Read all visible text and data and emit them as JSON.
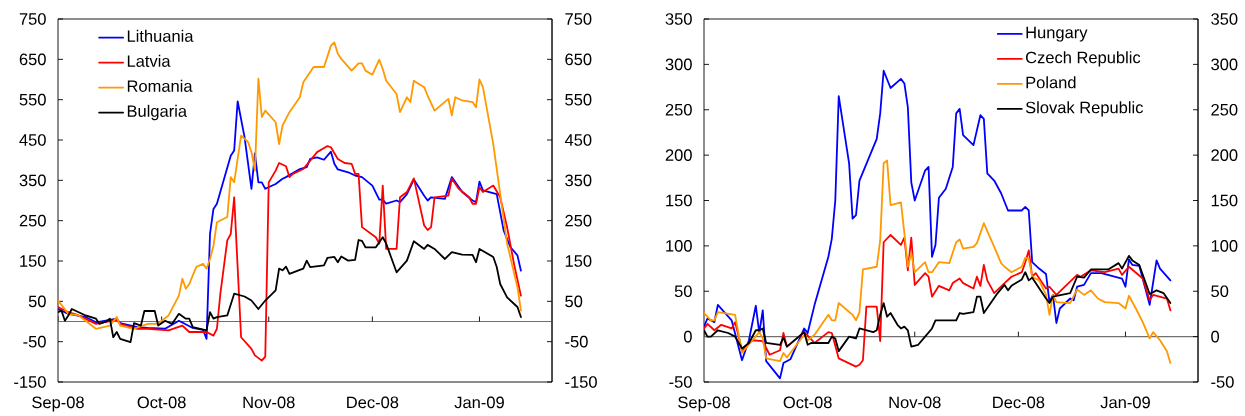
{
  "chart_data": [
    {
      "type": "line",
      "xlim": [
        "2008-09-01",
        "2009-01-22"
      ],
      "xticks": [
        {
          "value": "2008-09-01",
          "label": "Sep-08"
        },
        {
          "value": "2008-10-01",
          "label": "Oct-08"
        },
        {
          "value": "2008-11-01",
          "label": "Nov-08"
        },
        {
          "value": "2008-12-01",
          "label": "Dec-08"
        },
        {
          "value": "2009-01-01",
          "label": "Jan-09"
        }
      ],
      "ylim": [
        -150,
        750
      ],
      "yticks": [
        -150,
        -50,
        50,
        150,
        250,
        350,
        450,
        550,
        650,
        750
      ],
      "y2lim": [
        -150,
        750
      ],
      "y2ticks": [
        -150,
        -50,
        50,
        150,
        250,
        350,
        450,
        550,
        650,
        750
      ],
      "legend": "top left",
      "ref_lines": [
        {
          "axis": "y",
          "value": 0,
          "color": "#707070"
        }
      ],
      "series": [
        {
          "name": "Lithuania",
          "color": "#0000ff",
          "x": [
            "2008-09-01",
            "2008-09-04",
            "2008-09-09",
            "2008-09-12",
            "2008-09-18",
            "2008-09-19",
            "2008-09-24",
            "2008-09-27",
            "2008-10-02",
            "2008-10-06",
            "2008-10-10",
            "2008-10-13",
            "2008-10-14",
            "2008-10-15",
            "2008-10-16",
            "2008-10-17",
            "2008-10-21",
            "2008-10-22",
            "2008-10-23",
            "2008-10-25",
            "2008-10-27",
            "2008-10-28",
            "2008-10-29",
            "2008-10-30",
            "2008-10-31",
            "2008-11-03",
            "2008-11-05",
            "2008-11-06",
            "2008-11-10",
            "2008-11-12",
            "2008-11-13",
            "2008-11-15",
            "2008-11-17",
            "2008-11-19",
            "2008-11-20",
            "2008-11-21",
            "2008-11-24",
            "2008-11-26",
            "2008-11-28",
            "2008-12-01",
            "2008-12-03",
            "2008-12-04",
            "2008-12-05",
            "2008-12-08",
            "2008-12-09",
            "2008-12-11",
            "2008-12-13",
            "2008-12-16",
            "2008-12-17",
            "2008-12-18",
            "2008-12-22",
            "2008-12-24",
            "2008-12-27",
            "2008-12-30",
            "2008-12-31",
            "2009-01-01",
            "2009-01-02",
            "2009-01-06",
            "2009-01-08",
            "2009-01-10",
            "2009-01-12",
            "2009-01-13"
          ],
          "values": [
            31,
            19,
            11,
            -2,
            7,
            -4,
            -14,
            -16,
            -18,
            2,
            -16,
            -21,
            -43,
            217,
            279,
            292,
            411,
            424,
            546,
            457,
            329,
            417,
            345,
            345,
            329,
            341,
            354,
            358,
            378,
            383,
            403,
            407,
            401,
            421,
            391,
            377,
            370,
            362,
            358,
            337,
            302,
            302,
            292,
            300,
            296,
            316,
            352,
            312,
            300,
            308,
            304,
            358,
            321,
            300,
            296,
            347,
            325,
            316,
            226,
            184,
            164,
            126
          ]
        },
        {
          "name": "Latvia",
          "color": "#ff0000",
          "x": [
            "2008-09-01",
            "2008-09-04",
            "2008-09-07",
            "2008-09-12",
            "2008-09-18",
            "2008-09-19",
            "2008-09-24",
            "2008-09-27",
            "2008-10-03",
            "2008-10-07",
            "2008-10-09",
            "2008-10-14",
            "2008-10-16",
            "2008-10-17",
            "2008-10-18",
            "2008-10-20",
            "2008-10-21",
            "2008-10-22",
            "2008-10-24",
            "2008-10-27",
            "2008-10-28",
            "2008-10-30",
            "2008-10-31",
            "2008-11-01",
            "2008-11-03",
            "2008-11-04",
            "2008-11-06",
            "2008-11-07",
            "2008-11-08",
            "2008-11-11",
            "2008-11-13",
            "2008-11-15",
            "2008-11-18",
            "2008-11-19",
            "2008-11-21",
            "2008-11-23",
            "2008-11-25",
            "2008-11-26",
            "2008-11-27",
            "2008-11-28",
            "2008-12-02",
            "2008-12-03",
            "2008-12-04",
            "2008-12-05",
            "2008-12-08",
            "2008-12-09",
            "2008-12-11",
            "2008-12-13",
            "2008-12-16",
            "2008-12-17",
            "2008-12-18",
            "2008-12-19",
            "2008-12-23",
            "2008-12-24",
            "2008-12-26",
            "2008-12-29",
            "2008-12-30",
            "2008-12-31",
            "2009-01-01",
            "2009-01-02",
            "2009-01-05",
            "2009-01-07",
            "2009-01-09",
            "2009-01-11",
            "2009-01-13"
          ],
          "values": [
            36,
            23,
            15,
            -6,
            4,
            -6,
            -18,
            -18,
            -22,
            -10,
            -26,
            -26,
            -35,
            -18,
            69,
            201,
            217,
            308,
            -39,
            -68,
            -84,
            -97,
            -87,
            345,
            374,
            393,
            385,
            358,
            366,
            378,
            399,
            420,
            435,
            432,
            403,
            393,
            391,
            366,
            366,
            234,
            209,
            193,
            337,
            180,
            180,
            308,
            321,
            355,
            238,
            227,
            234,
            308,
            312,
            354,
            329,
            308,
            292,
            292,
            333,
            321,
            337,
            308,
            234,
            143,
            64
          ]
        },
        {
          "name": "Romania",
          "color": "#ff9900",
          "x": [
            "2008-09-01",
            "2008-09-04",
            "2008-09-07",
            "2008-09-12",
            "2008-09-16",
            "2008-09-18",
            "2008-09-19",
            "2008-09-23",
            "2008-09-27",
            "2008-09-30",
            "2008-10-01",
            "2008-10-03",
            "2008-10-06",
            "2008-10-07",
            "2008-10-08",
            "2008-10-09",
            "2008-10-11",
            "2008-10-13",
            "2008-10-14",
            "2008-10-15",
            "2008-10-16",
            "2008-10-17",
            "2008-10-20",
            "2008-10-21",
            "2008-10-22",
            "2008-10-24",
            "2008-10-26",
            "2008-10-27",
            "2008-10-28",
            "2008-10-29",
            "2008-10-30",
            "2008-10-31",
            "2008-11-03",
            "2008-11-04",
            "2008-11-05",
            "2008-11-07",
            "2008-11-10",
            "2008-11-11",
            "2008-11-14",
            "2008-11-17",
            "2008-11-19",
            "2008-11-20",
            "2008-11-21",
            "2008-11-22",
            "2008-11-25",
            "2008-11-27",
            "2008-11-28",
            "2008-11-29",
            "2008-12-01",
            "2008-12-03",
            "2008-12-04",
            "2008-12-05",
            "2008-12-08",
            "2008-12-09",
            "2008-12-11",
            "2008-12-12",
            "2008-12-13",
            "2008-12-16",
            "2008-12-17",
            "2008-12-19",
            "2008-12-23",
            "2008-12-24",
            "2008-12-25",
            "2008-12-27",
            "2008-12-30",
            "2008-12-31",
            "2009-01-01",
            "2009-01-02",
            "2009-01-05",
            "2009-01-09",
            "2009-01-12",
            "2009-01-13"
          ],
          "values": [
            52,
            19,
            15,
            -18,
            -10,
            11,
            -10,
            -18,
            -6,
            -6,
            2,
            15,
            64,
            106,
            81,
            93,
            135,
            143,
            131,
            155,
            188,
            246,
            259,
            358,
            345,
            461,
            445,
            420,
            374,
            602,
            507,
            523,
            494,
            440,
            486,
            519,
            556,
            593,
            631,
            631,
            684,
            692,
            664,
            651,
            622,
            640,
            640,
            622,
            612,
            649,
            626,
            597,
            564,
            519,
            556,
            544,
            597,
            581,
            560,
            523,
            552,
            511,
            556,
            548,
            544,
            531,
            600,
            581,
            440,
            193,
            85,
            27
          ]
        },
        {
          "name": "Bulgaria",
          "color": "#000000",
          "x": [
            "2008-09-01",
            "2008-09-02",
            "2008-09-03",
            "2008-09-04",
            "2008-09-05",
            "2008-09-07",
            "2008-09-09",
            "2008-09-12",
            "2008-09-13",
            "2008-09-15",
            "2008-09-16",
            "2008-09-17",
            "2008-09-18",
            "2008-09-19",
            "2008-09-22",
            "2008-09-23",
            "2008-09-25",
            "2008-09-26",
            "2008-09-29",
            "2008-09-30",
            "2008-10-02",
            "2008-10-04",
            "2008-10-06",
            "2008-10-08",
            "2008-10-09",
            "2008-10-10",
            "2008-10-14",
            "2008-10-15",
            "2008-10-16",
            "2008-10-17",
            "2008-10-20",
            "2008-10-22",
            "2008-10-25",
            "2008-10-27",
            "2008-10-29",
            "2008-10-31",
            "2008-11-03",
            "2008-11-04",
            "2008-11-05",
            "2008-11-06",
            "2008-11-07",
            "2008-11-10",
            "2008-11-11",
            "2008-11-12",
            "2008-11-13",
            "2008-11-17",
            "2008-11-18",
            "2008-11-20",
            "2008-11-21",
            "2008-11-22",
            "2008-11-24",
            "2008-11-26",
            "2008-11-27",
            "2008-11-28",
            "2008-11-29",
            "2008-12-02",
            "2008-12-04",
            "2008-12-05",
            "2008-12-08",
            "2008-12-11",
            "2008-12-13",
            "2008-12-16",
            "2008-12-17",
            "2008-12-19",
            "2008-12-22",
            "2008-12-24",
            "2008-12-27",
            "2008-12-30",
            "2008-12-31",
            "2009-01-01",
            "2009-01-05",
            "2009-01-06",
            "2009-01-07",
            "2009-01-09",
            "2009-01-12",
            "2009-01-13"
          ],
          "values": [
            23,
            27,
            2,
            15,
            31,
            23,
            15,
            7,
            -6,
            0,
            7,
            -39,
            -26,
            -43,
            -51,
            -4,
            -10,
            26,
            26,
            -10,
            2,
            -6,
            19,
            7,
            7,
            -14,
            -22,
            23,
            7,
            11,
            15,
            69,
            62,
            52,
            31,
            52,
            77,
            131,
            127,
            136,
            118,
            128,
            131,
            151,
            135,
            139,
            158,
            160,
            147,
            161,
            151,
            153,
            202,
            200,
            184,
            184,
            209,
            193,
            122,
            151,
            199,
            180,
            190,
            180,
            155,
            172,
            166,
            165,
            147,
            180,
            160,
            135,
            93,
            60,
            36,
            11
          ]
        }
      ]
    },
    {
      "type": "line",
      "xlim": [
        "2008-09-01",
        "2009-01-22"
      ],
      "xticks": [
        {
          "value": "2008-09-01",
          "label": "Sep-08"
        },
        {
          "value": "2008-10-01",
          "label": "Oct-08"
        },
        {
          "value": "2008-11-01",
          "label": "Nov-08"
        },
        {
          "value": "2008-12-01",
          "label": "Dec-08"
        },
        {
          "value": "2009-01-01",
          "label": "Jan-09"
        }
      ],
      "ylim": [
        -50,
        350
      ],
      "yticks": [
        -50,
        0,
        50,
        100,
        150,
        200,
        250,
        300,
        350
      ],
      "y2lim": [
        -50,
        350
      ],
      "y2ticks": [
        -50,
        0,
        50,
        100,
        150,
        200,
        250,
        300,
        350
      ],
      "legend": "top right",
      "ref_lines": [
        {
          "axis": "y",
          "value": 0,
          "color": "#707070"
        }
      ],
      "series": [
        {
          "name": "Hungary",
          "color": "#0000ff",
          "x": [
            "2008-09-01",
            "2008-09-02",
            "2008-09-04",
            "2008-09-05",
            "2008-09-09",
            "2008-09-12",
            "2008-09-14",
            "2008-09-16",
            "2008-09-17",
            "2008-09-18",
            "2008-09-19",
            "2008-09-23",
            "2008-09-24",
            "2008-09-26",
            "2008-09-30",
            "2008-10-01",
            "2008-10-03",
            "2008-10-07",
            "2008-10-08",
            "2008-10-09",
            "2008-10-10",
            "2008-10-13",
            "2008-10-14",
            "2008-10-15",
            "2008-10-16",
            "2008-10-21",
            "2008-10-22",
            "2008-10-23",
            "2008-10-25",
            "2008-10-28",
            "2008-10-29",
            "2008-10-30",
            "2008-10-31",
            "2008-11-01",
            "2008-11-04",
            "2008-11-05",
            "2008-11-06",
            "2008-11-07",
            "2008-11-08",
            "2008-11-10",
            "2008-11-12",
            "2008-11-13",
            "2008-11-14",
            "2008-11-15",
            "2008-11-18",
            "2008-11-20",
            "2008-11-21",
            "2008-11-22",
            "2008-11-24",
            "2008-11-26",
            "2008-11-28",
            "2008-12-02",
            "2008-12-03",
            "2008-12-04",
            "2008-12-05",
            "2008-12-07",
            "2008-12-09",
            "2008-12-10",
            "2008-12-11",
            "2008-12-12",
            "2008-12-13",
            "2008-12-16",
            "2008-12-17",
            "2008-12-18",
            "2008-12-20",
            "2008-12-22",
            "2008-12-25",
            "2008-12-31",
            "2009-01-01",
            "2009-01-02",
            "2009-01-03",
            "2009-01-05",
            "2009-01-08",
            "2009-01-10",
            "2009-01-11",
            "2009-01-14"
          ],
          "values": [
            11,
            20,
            16,
            35,
            18,
            -26,
            -4,
            34,
            4,
            29,
            -27,
            -46,
            -29,
            -25,
            9,
            4,
            35,
            88,
            108,
            150,
            265,
            191,
            130,
            134,
            172,
            218,
            246,
            293,
            274,
            284,
            279,
            253,
            170,
            150,
            183,
            187,
            88,
            101,
            153,
            163,
            187,
            246,
            251,
            222,
            211,
            244,
            240,
            180,
            172,
            158,
            139,
            139,
            143,
            139,
            82,
            75,
            69,
            38,
            46,
            15,
            31,
            42,
            40,
            55,
            57,
            70,
            70,
            64,
            55,
            85,
            79,
            78,
            35,
            84,
            75,
            62
          ]
        },
        {
          "name": "Czech Republic",
          "color": "#ff0000",
          "x": [
            "2008-09-01",
            "2008-09-02",
            "2008-09-04",
            "2008-09-06",
            "2008-09-09",
            "2008-09-10",
            "2008-09-12",
            "2008-09-15",
            "2008-09-18",
            "2008-09-20",
            "2008-09-23",
            "2008-09-24",
            "2008-09-25",
            "2008-09-30",
            "2008-10-03",
            "2008-10-07",
            "2008-10-08",
            "2008-10-10",
            "2008-10-15",
            "2008-10-16",
            "2008-10-17",
            "2008-10-18",
            "2008-10-21",
            "2008-10-22",
            "2008-10-23",
            "2008-10-25",
            "2008-10-28",
            "2008-10-29",
            "2008-10-30",
            "2008-10-31",
            "2008-11-01",
            "2008-11-04",
            "2008-11-05",
            "2008-11-06",
            "2008-11-08",
            "2008-11-11",
            "2008-11-12",
            "2008-11-14",
            "2008-11-15",
            "2008-11-18",
            "2008-11-19",
            "2008-11-20",
            "2008-11-21",
            "2008-11-22",
            "2008-11-24",
            "2008-11-27",
            "2008-11-29",
            "2008-12-02",
            "2008-12-03",
            "2008-12-04",
            "2008-12-05",
            "2008-12-06",
            "2008-12-09",
            "2008-12-10",
            "2008-12-12",
            "2008-12-18",
            "2008-12-19",
            "2008-12-22",
            "2008-12-26",
            "2008-12-30",
            "2008-12-31",
            "2009-01-02",
            "2009-01-06",
            "2009-01-08",
            "2009-01-09",
            "2009-01-13",
            "2009-01-14"
          ],
          "values": [
            9,
            14,
            7,
            13,
            9,
            16,
            -15,
            -4,
            -5,
            -20,
            -15,
            4,
            -11,
            5,
            -7,
            5,
            4,
            -24,
            -33,
            -31,
            -26,
            33,
            33,
            -5,
            104,
            112,
            101,
            109,
            73,
            109,
            57,
            70,
            66,
            44,
            56,
            51,
            59,
            64,
            59,
            53,
            66,
            56,
            79,
            62,
            48,
            59,
            66,
            71,
            82,
            95,
            66,
            70,
            53,
            55,
            46,
            68,
            66,
            73,
            71,
            75,
            68,
            77,
            64,
            40,
            46,
            42,
            29
          ]
        },
        {
          "name": "Poland",
          "color": "#ff9900",
          "x": [
            "2008-09-01",
            "2008-09-03",
            "2008-09-04",
            "2008-09-05",
            "2008-09-10",
            "2008-09-12",
            "2008-09-15",
            "2008-09-17",
            "2008-09-18",
            "2008-09-19",
            "2008-09-23",
            "2008-09-24",
            "2008-09-25",
            "2008-09-30",
            "2008-10-01",
            "2008-10-03",
            "2008-10-07",
            "2008-10-08",
            "2008-10-09",
            "2008-10-10",
            "2008-10-14",
            "2008-10-15",
            "2008-10-16",
            "2008-10-17",
            "2008-10-21",
            "2008-10-22",
            "2008-10-23",
            "2008-10-24",
            "2008-10-25",
            "2008-10-28",
            "2008-10-29",
            "2008-10-30",
            "2008-10-31",
            "2008-11-01",
            "2008-11-04",
            "2008-11-05",
            "2008-11-06",
            "2008-11-08",
            "2008-11-11",
            "2008-11-13",
            "2008-11-14",
            "2008-11-15",
            "2008-11-18",
            "2008-11-19",
            "2008-11-21",
            "2008-11-24",
            "2008-11-26",
            "2008-11-27",
            "2008-11-29",
            "2008-12-02",
            "2008-12-03",
            "2008-12-04",
            "2008-12-05",
            "2008-12-07",
            "2008-12-09",
            "2008-12-10",
            "2008-12-11",
            "2008-12-12",
            "2008-12-16",
            "2008-12-18",
            "2008-12-20",
            "2008-12-22",
            "2008-12-24",
            "2008-12-26",
            "2008-12-30",
            "2009-01-01",
            "2009-01-02",
            "2009-01-04",
            "2009-01-06",
            "2009-01-08",
            "2009-01-09",
            "2009-01-11",
            "2009-01-13",
            "2009-01-14"
          ],
          "values": [
            26,
            18,
            18,
            27,
            24,
            -18,
            -4,
            5,
            -2,
            -24,
            -27,
            -18,
            -23,
            2,
            -4,
            2,
            24,
            18,
            18,
            37,
            24,
            18,
            27,
            74,
            77,
            106,
            191,
            194,
            145,
            148,
            114,
            77,
            92,
            71,
            82,
            71,
            71,
            82,
            81,
            104,
            107,
            97,
            99,
            103,
            125,
            99,
            81,
            77,
            71,
            77,
            87,
            86,
            66,
            62,
            46,
            24,
            46,
            38,
            37,
            52,
            46,
            51,
            42,
            38,
            37,
            31,
            45,
            31,
            16,
            -2,
            5,
            -4,
            -16,
            -29
          ]
        },
        {
          "name": "Slovak Republic",
          "color": "#000000",
          "x": [
            "2008-09-01",
            "2008-09-02",
            "2008-09-03",
            "2008-09-05",
            "2008-09-08",
            "2008-09-10",
            "2008-09-12",
            "2008-09-14",
            "2008-09-16",
            "2008-09-17",
            "2008-09-18",
            "2008-09-19",
            "2008-09-23",
            "2008-09-24",
            "2008-09-25",
            "2008-09-30",
            "2008-10-01",
            "2008-10-02",
            "2008-10-07",
            "2008-10-08",
            "2008-10-09",
            "2008-10-10",
            "2008-10-13",
            "2008-10-15",
            "2008-10-16",
            "2008-10-20",
            "2008-10-21",
            "2008-10-22",
            "2008-10-23",
            "2008-10-24",
            "2008-10-25",
            "2008-10-27",
            "2008-10-28",
            "2008-10-29",
            "2008-10-30",
            "2008-10-31",
            "2008-11-02",
            "2008-11-04",
            "2008-11-06",
            "2008-11-07",
            "2008-11-08",
            "2008-11-13",
            "2008-11-14",
            "2008-11-15",
            "2008-11-18",
            "2008-11-19",
            "2008-11-20",
            "2008-11-21",
            "2008-11-23",
            "2008-11-25",
            "2008-11-27",
            "2008-11-28",
            "2008-11-29",
            "2008-12-02",
            "2008-12-03",
            "2008-12-04",
            "2008-12-05",
            "2008-12-09",
            "2008-12-10",
            "2008-12-11",
            "2008-12-16",
            "2008-12-18",
            "2008-12-20",
            "2008-12-22",
            "2008-12-27",
            "2008-12-30",
            "2008-12-31",
            "2009-01-02",
            "2009-01-03",
            "2009-01-05",
            "2009-01-08",
            "2009-01-10",
            "2009-01-12",
            "2009-01-14"
          ],
          "values": [
            7,
            0,
            0,
            7,
            4,
            0,
            -13,
            -7,
            7,
            7,
            9,
            -7,
            -9,
            -1,
            -11,
            5,
            -9,
            -7,
            -7,
            0,
            -2,
            -16,
            0,
            -2,
            9,
            5,
            7,
            24,
            37,
            22,
            26,
            13,
            9,
            11,
            7,
            -11,
            -9,
            0,
            9,
            18,
            18,
            18,
            26,
            25,
            27,
            44,
            44,
            26,
            37,
            48,
            57,
            51,
            56,
            63,
            71,
            62,
            65,
            42,
            37,
            44,
            48,
            66,
            65,
            74,
            74,
            81,
            75,
            89,
            84,
            79,
            47,
            51,
            48,
            37
          ]
        }
      ]
    }
  ]
}
